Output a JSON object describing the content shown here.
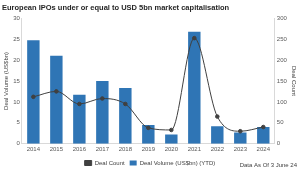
{
  "chart_data": {
    "type": "bar",
    "title": "European IPOs under or equal to USD 5bn market capitalisation",
    "ylabel": "Deal Volume (US$bn)",
    "y2label": "Deal Count",
    "annotation": "Data As Of 3 June 24",
    "categories": [
      "2014",
      "2015",
      "2016",
      "2017",
      "2018",
      "2019",
      "2020",
      "2021",
      "2022",
      "2023",
      "2024"
    ],
    "series": [
      {
        "name": "Deal Volume (US$bn) (YTD)",
        "type": "bar",
        "color": "#2f75b5",
        "values": [
          24.7,
          21.0,
          11.7,
          15.0,
          13.3,
          4.5,
          2.2,
          26.7,
          4.2,
          2.7,
          4.0
        ]
      },
      {
        "name": "Deal Count",
        "type": "line",
        "axis": "y2",
        "color": "#404040",
        "marker": "circle",
        "values": [
          112,
          125,
          95,
          108,
          95,
          38,
          33,
          252,
          65,
          30,
          40
        ]
      }
    ],
    "ylim": [
      0,
      30
    ],
    "yticks": [
      0,
      5,
      10,
      15,
      20,
      25,
      30
    ],
    "y2lim": [
      0,
      300
    ],
    "y2ticks": [
      0,
      50,
      100,
      150,
      200,
      250,
      300
    ],
    "grid": false,
    "legend": "bottom"
  }
}
